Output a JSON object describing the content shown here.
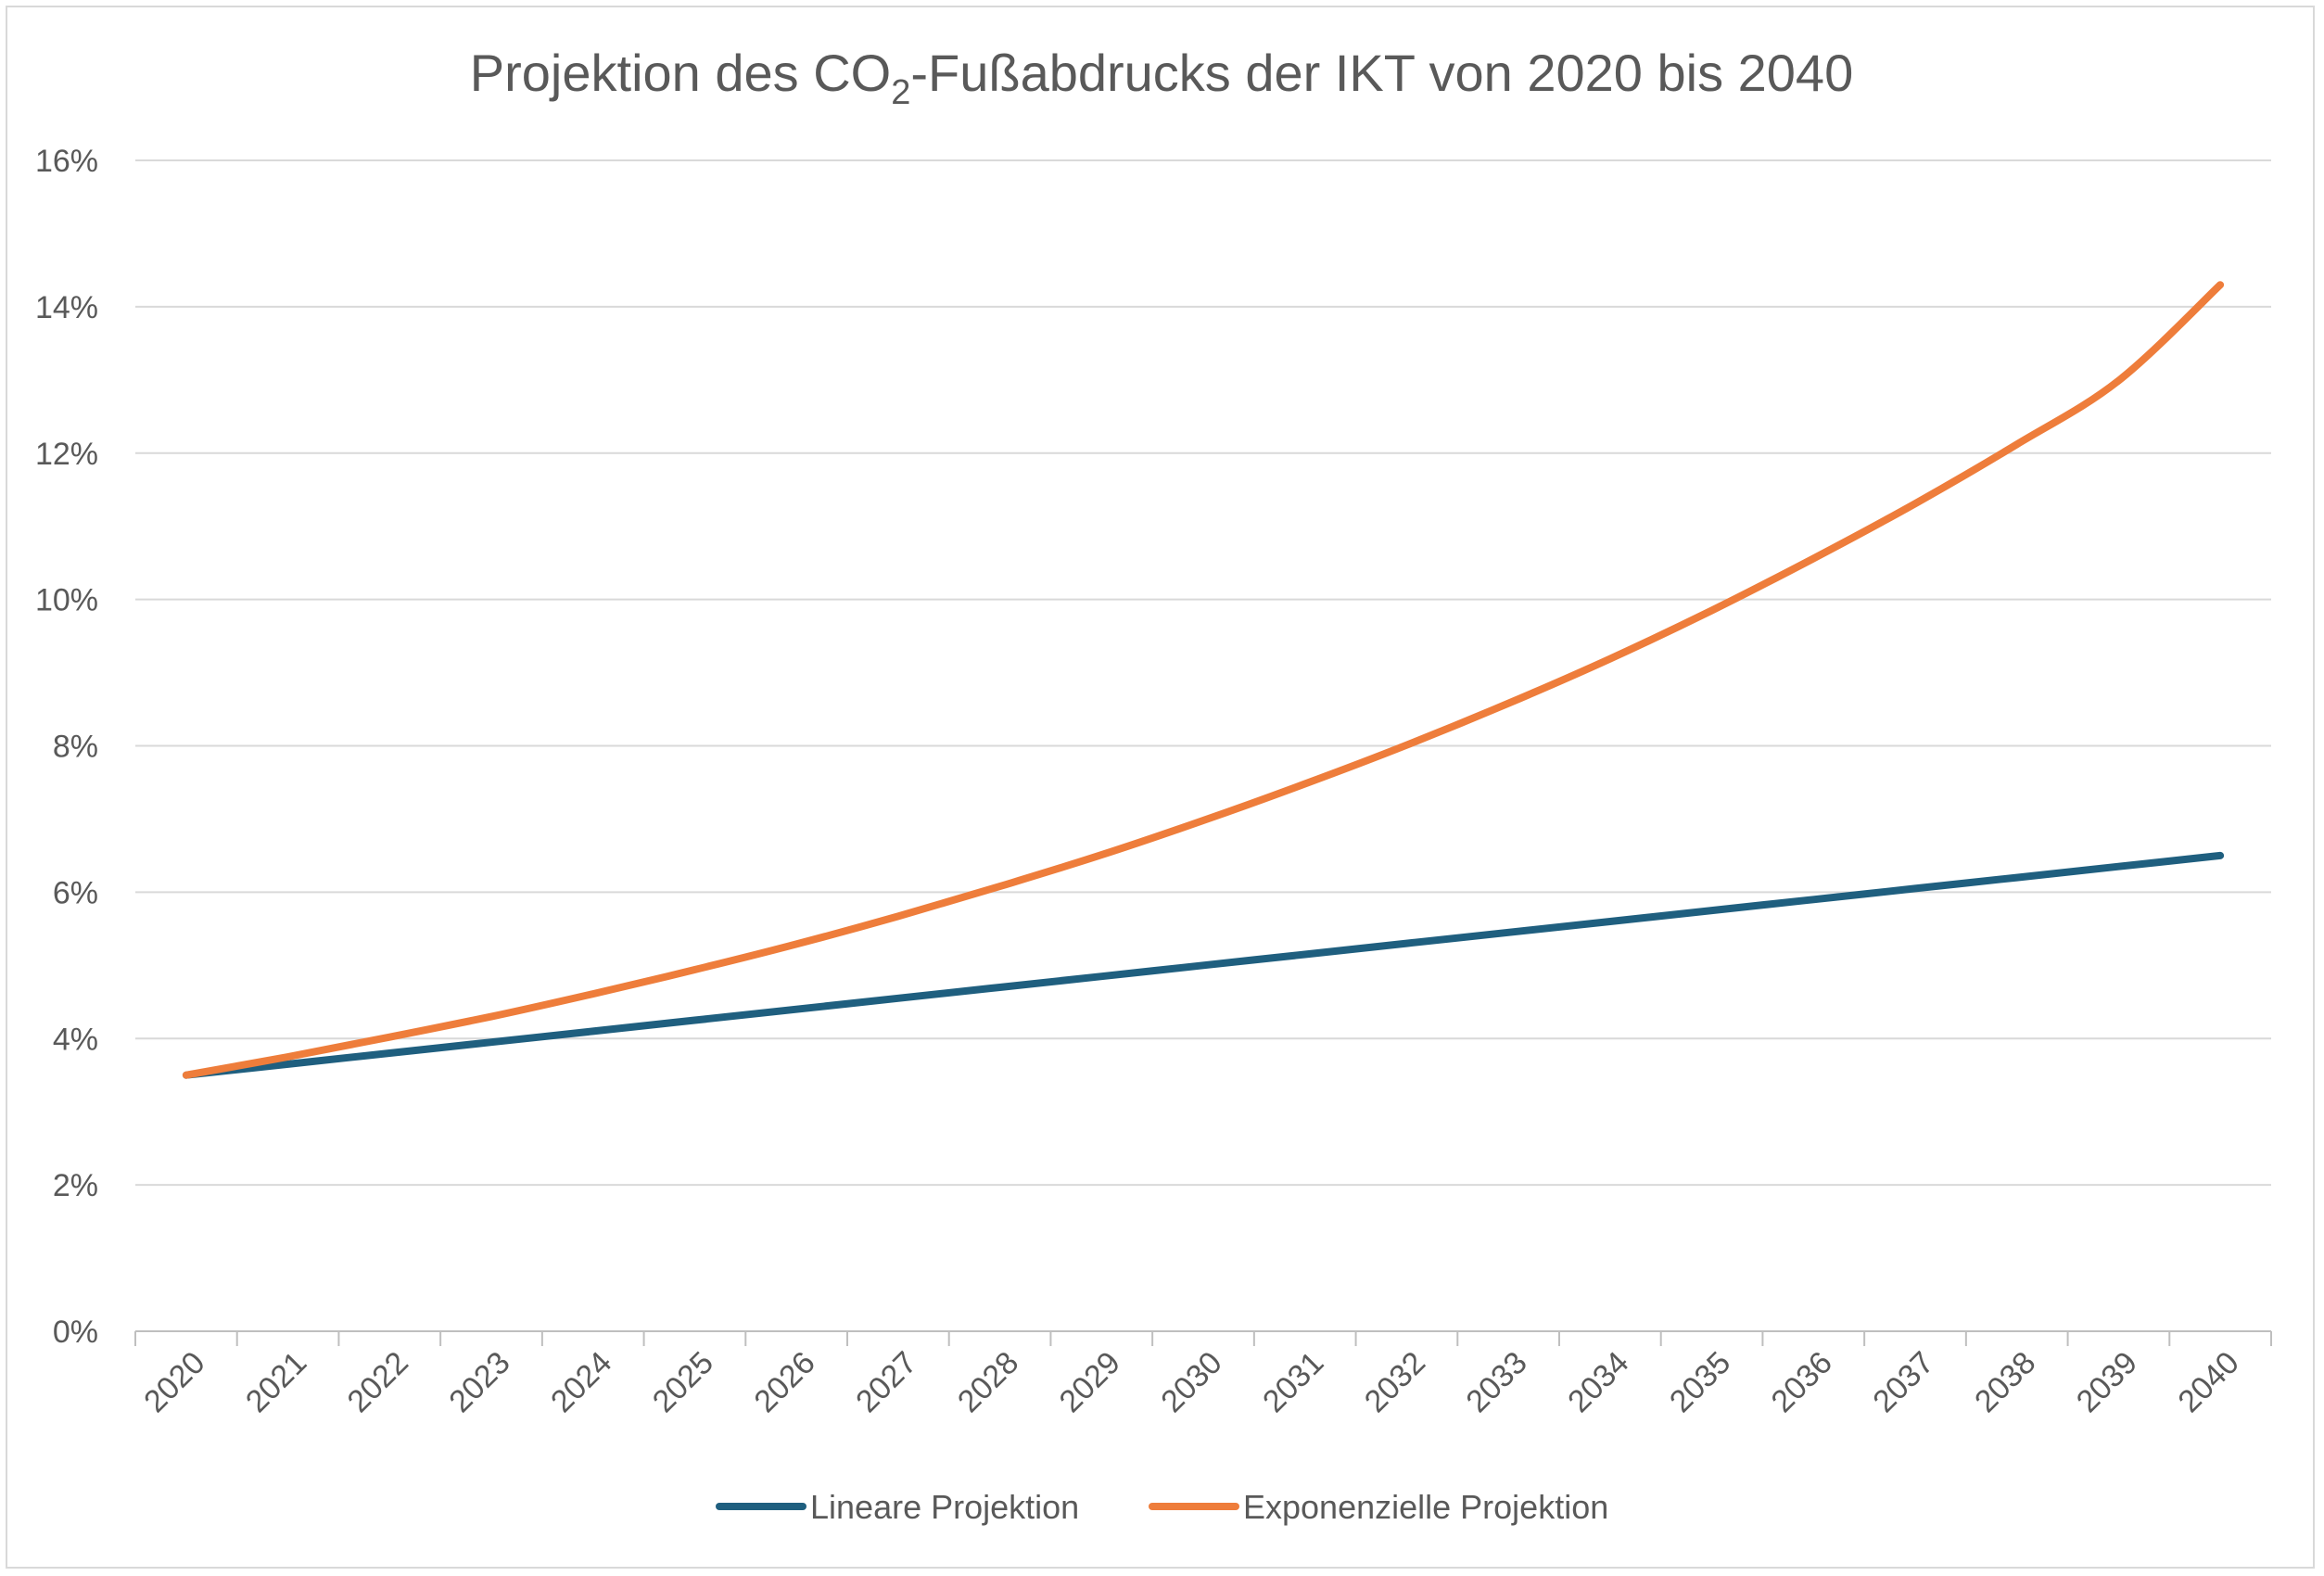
{
  "chart_data": {
    "type": "line",
    "title": {
      "prefix": "Projektion des CO",
      "subscript": "2",
      "suffix": "-Fußabdrucks der IKT von 2020 bis 2040"
    },
    "categories": [
      "2020",
      "2021",
      "2022",
      "2023",
      "2024",
      "2025",
      "2026",
      "2027",
      "2028",
      "2029",
      "2030",
      "2031",
      "2032",
      "2033",
      "2034",
      "2035",
      "2036",
      "2037",
      "2038",
      "2039",
      "2040"
    ],
    "series": [
      {
        "name": "Lineare Projektion",
        "color": "#1f5f7f",
        "values": [
          3.5,
          3.65,
          3.8,
          3.95,
          4.1,
          4.25,
          4.4,
          4.55,
          4.7,
          4.85,
          5.0,
          5.15,
          5.3,
          5.45,
          5.6,
          5.75,
          5.9,
          6.05,
          6.2,
          6.35,
          6.5
        ]
      },
      {
        "name": "Exponenzielle Projektion",
        "color": "#ee7d3b",
        "values": [
          3.5,
          3.75,
          4.02,
          4.3,
          4.61,
          4.94,
          5.29,
          5.67,
          6.08,
          6.51,
          6.98,
          7.48,
          8.01,
          8.58,
          9.19,
          9.85,
          10.56,
          11.31,
          12.12,
          12.99,
          14.3
        ]
      }
    ],
    "y_ticks": [
      "0%",
      "2%",
      "4%",
      "6%",
      "8%",
      "10%",
      "12%",
      "14%",
      "16%"
    ],
    "ylim": [
      0,
      16
    ],
    "y_unit": "%",
    "grid": "horizontal",
    "legend_position": "bottom",
    "colors": {
      "grid": "#d9d9d9",
      "axis": "#bfbfbf",
      "text": "#595959"
    }
  }
}
